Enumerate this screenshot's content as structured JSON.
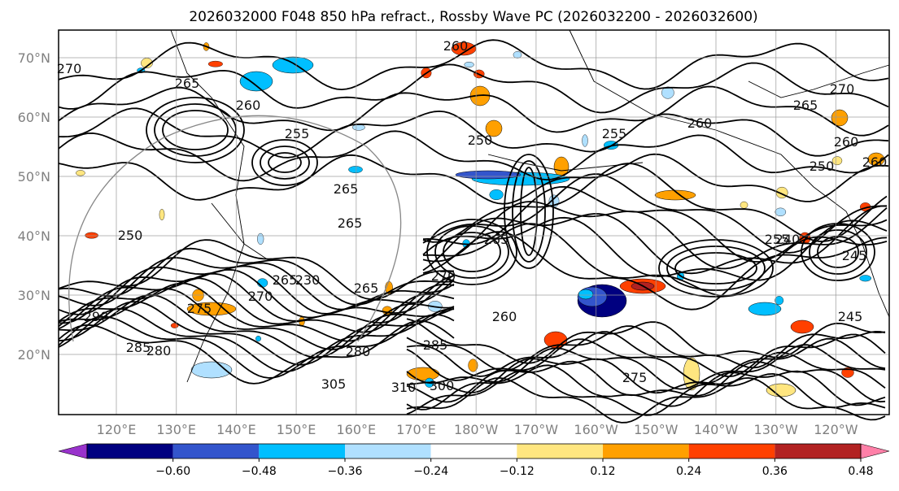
{
  "chart_data": {
    "type": "contour map",
    "title": "2026032000 F048 850 hPa refract., Rossby Wave PC (2026032200 - 2026032600)",
    "map_extent": {
      "lon_range": [
        "~112°E",
        "~112°W"
      ],
      "lat_range": [
        "~10°N",
        "~75°N"
      ]
    },
    "grid": true,
    "lat_ticks": [
      "70°N",
      "60°N",
      "50°N",
      "40°N",
      "30°N",
      "20°N"
    ],
    "lon_ticks": [
      "120°E",
      "130°E",
      "140°E",
      "150°E",
      "160°E",
      "170°E",
      "180°W",
      "170°W",
      "160°W",
      "150°W",
      "140°W",
      "130°W",
      "120°W"
    ],
    "filled_field": {
      "name": "Rossby Wave PC",
      "colorbar": {
        "orientation": "horizontal",
        "extend": "both",
        "levels": [
          -0.6,
          -0.48,
          -0.36,
          -0.24,
          -0.12,
          0.12,
          0.24,
          0.36,
          0.48,
          0.6
        ],
        "level_labels": [
          "−0.60",
          "−0.48",
          "−0.36",
          "−0.24",
          "−0.12",
          "0.12",
          "0.24",
          "0.36",
          "0.48",
          "0.60"
        ],
        "colors": [
          "#9933cc",
          "#000080",
          "#3355cc",
          "#00bfff",
          "#b0e0ff",
          "#ffffff",
          "#ffe680",
          "#ffa000",
          "#ff4000",
          "#b22222",
          "#ff80a8"
        ]
      }
    },
    "contour_field": {
      "name": "850 hPa refract.",
      "labels": [
        {
          "text": "270"
        },
        {
          "text": "260"
        },
        {
          "text": "265"
        },
        {
          "text": "260"
        },
        {
          "text": "255"
        },
        {
          "text": "250"
        },
        {
          "text": "265"
        },
        {
          "text": "255"
        },
        {
          "text": "250"
        },
        {
          "text": "265"
        },
        {
          "text": "250"
        },
        {
          "text": "260"
        },
        {
          "text": "265"
        },
        {
          "text": "270"
        },
        {
          "text": "260"
        },
        {
          "text": "265"
        },
        {
          "text": "270"
        },
        {
          "text": "255"
        },
        {
          "text": "240"
        },
        {
          "text": "245"
        },
        {
          "text": "230"
        },
        {
          "text": "265"
        },
        {
          "text": "270"
        },
        {
          "text": "275"
        },
        {
          "text": "280"
        },
        {
          "text": "285"
        },
        {
          "text": "290"
        },
        {
          "text": "280"
        },
        {
          "text": "310"
        },
        {
          "text": "300"
        },
        {
          "text": "305"
        },
        {
          "text": "260"
        },
        {
          "text": "285"
        },
        {
          "text": "275"
        },
        {
          "text": "245"
        },
        {
          "text": "265"
        },
        {
          "text": "260"
        }
      ]
    }
  }
}
